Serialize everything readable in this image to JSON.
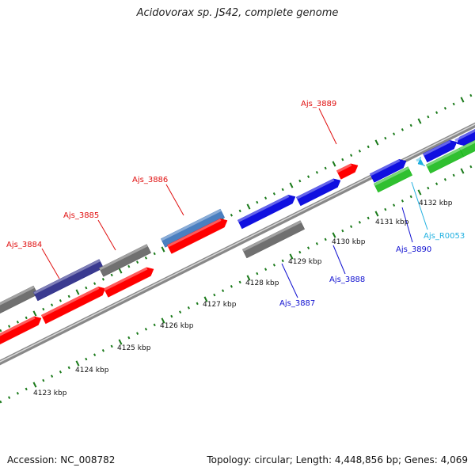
{
  "title": "Acidovorax sp. JS42, complete genome",
  "footer": {
    "accession": "Accession: NC_008782",
    "summary": "Topology: circular; Length: 4,448,856 bp; Genes: 4,069"
  },
  "scale_labels": [
    "4123 kbp",
    "4124 kbp",
    "4125 kbp",
    "4126 kbp",
    "4127 kbp",
    "4128 kbp",
    "4129 kbp",
    "4130 kbp",
    "4131 kbp",
    "4132 kbp"
  ],
  "gene_labels": [
    {
      "text": "Ajs_3884",
      "color": "#e01010"
    },
    {
      "text": "Ajs_3885",
      "color": "#e01010"
    },
    {
      "text": "Ajs_3886",
      "color": "#e01010"
    },
    {
      "text": "Ajs_3889",
      "color": "#e01010"
    },
    {
      "text": "Ajs_3887",
      "color": "#1010d0"
    },
    {
      "text": "Ajs_3888",
      "color": "#1010d0"
    },
    {
      "text": "Ajs_3890",
      "color": "#1010d0"
    },
    {
      "text": "Ajs_R0053",
      "color": "#20b0e0"
    }
  ],
  "colors": {
    "backbone": "#888888",
    "ticks": "#1a7a1a",
    "red": "#ff0000",
    "blue": "#1010e0",
    "gray": "#707070",
    "steelblue": "#4a7fc0",
    "indigo": "#3a3a90",
    "green": "#30c030",
    "cyan": "#20b0e0"
  }
}
